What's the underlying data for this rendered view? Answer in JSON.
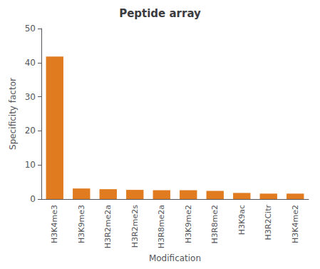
{
  "chart_data": {
    "type": "bar",
    "title": "Peptide array",
    "xlabel": "Modification",
    "ylabel": "Specificity factor",
    "categories": [
      "H3K4me3",
      "H3K9me3",
      "H3R2me2a",
      "H3R2me2s",
      "H3R8me2a",
      "H3K9me2",
      "H3R8me2",
      "H3K9ac",
      "H3R2Citr",
      "H3K4me2"
    ],
    "values": [
      41.8,
      3.1,
      2.9,
      2.7,
      2.6,
      2.6,
      2.4,
      1.8,
      1.6,
      1.6
    ],
    "color": "#E07B20",
    "ylim": [
      0,
      50
    ],
    "yticks": [
      0,
      10,
      20,
      30,
      40,
      50
    ],
    "grid": false
  }
}
